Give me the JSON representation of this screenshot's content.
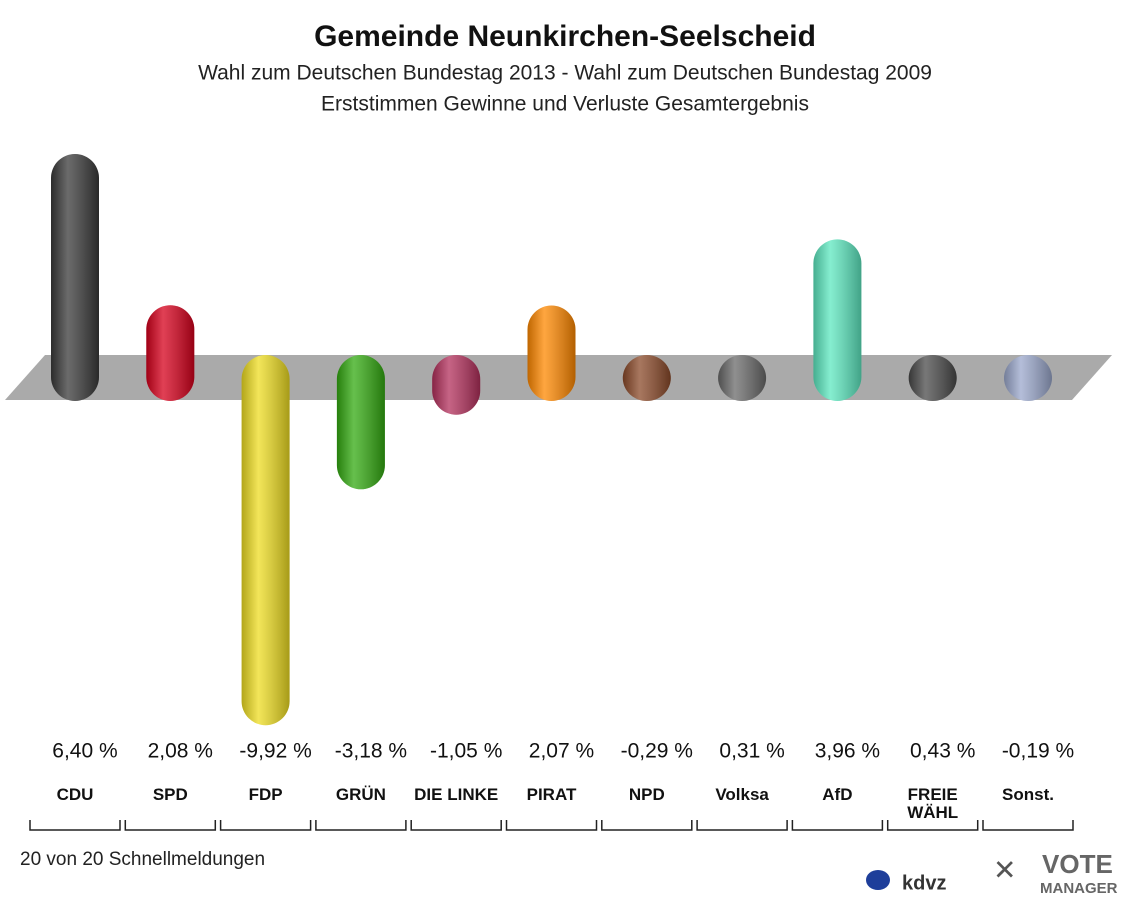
{
  "chart_data": {
    "type": "bar",
    "title": "Gemeinde Neunkirchen-Seelscheid",
    "subtitles": [
      "Wahl zum Deutschen Bundestag 2013 - Wahl zum Deutschen Bundestag 2009",
      "Erststimmen Gewinne und Verluste Gesamtergebnis"
    ],
    "categories": [
      "CDU",
      "SPD",
      "FDP",
      "GRÜN",
      "DIE LINKE",
      "PIRAT",
      "NPD",
      "Volksa",
      "AfD",
      "FREIE WÄHL",
      "Sonst."
    ],
    "values": [
      6.4,
      2.08,
      -9.92,
      -3.18,
      -1.05,
      2.07,
      -0.29,
      0.31,
      3.96,
      0.43,
      -0.19
    ],
    "value_labels": [
      "6,40 %",
      "2,08 %",
      "-9,92 %",
      "-3,18 %",
      "-1,05 %",
      "2,07 %",
      "-0,29 %",
      "0,31 %",
      "3,96 %",
      "0,43 %",
      "-0,19 %"
    ],
    "colors": [
      "#3a3a3a",
      "#d6001c",
      "#eedd22",
      "#33aa11",
      "#b3305c",
      "#ff8800",
      "#8b4a2a",
      "#6a6a6a",
      "#5de8c0",
      "#4a4a4a",
      "#9ba8cc"
    ],
    "footnote": "20 von 20 Schnellmeldungen",
    "logos": [
      "kdvz",
      "VOTE",
      "MANAGER"
    ]
  }
}
